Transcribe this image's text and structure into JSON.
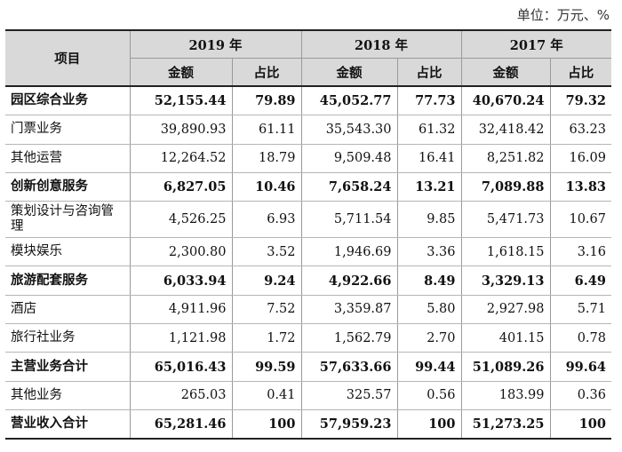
{
  "unit_note": "单位：万元、%",
  "header": {
    "item": "项目",
    "years": [
      "2019 年",
      "2018 年",
      "2017 年"
    ],
    "amount_label": "金额",
    "ratio_label": "占比"
  },
  "rows": [
    {
      "label": "园区综合业务",
      "bold": true,
      "values": [
        "52,155.44",
        "79.89",
        "45,052.77",
        "77.73",
        "40,670.24",
        "79.32"
      ]
    },
    {
      "label": "门票业务",
      "bold": false,
      "values": [
        "39,890.93",
        "61.11",
        "35,543.30",
        "61.32",
        "32,418.42",
        "63.23"
      ]
    },
    {
      "label": "其他运营",
      "bold": false,
      "values": [
        "12,264.52",
        "18.79",
        "9,509.48",
        "16.41",
        "8,251.82",
        "16.09"
      ]
    },
    {
      "label": "创新创意服务",
      "bold": true,
      "values": [
        "6,827.05",
        "10.46",
        "7,658.24",
        "13.21",
        "7,089.88",
        "13.83"
      ]
    },
    {
      "label": "策划设计与咨询管理",
      "bold": false,
      "values": [
        "4,526.25",
        "6.93",
        "5,711.54",
        "9.85",
        "5,471.73",
        "10.67"
      ]
    },
    {
      "label": "模块娱乐",
      "bold": false,
      "values": [
        "2,300.80",
        "3.52",
        "1,946.69",
        "3.36",
        "1,618.15",
        "3.16"
      ]
    },
    {
      "label": "旅游配套服务",
      "bold": true,
      "values": [
        "6,033.94",
        "9.24",
        "4,922.66",
        "8.49",
        "3,329.13",
        "6.49"
      ]
    },
    {
      "label": "酒店",
      "bold": false,
      "values": [
        "4,911.96",
        "7.52",
        "3,359.87",
        "5.80",
        "2,927.98",
        "5.71"
      ]
    },
    {
      "label": "旅行社业务",
      "bold": false,
      "values": [
        "1,121.98",
        "1.72",
        "1,562.79",
        "2.70",
        "401.15",
        "0.78"
      ]
    },
    {
      "label": "主营业务合计",
      "bold": true,
      "values": [
        "65,016.43",
        "99.59",
        "57,633.66",
        "99.44",
        "51,089.26",
        "99.64"
      ]
    },
    {
      "label": "其他业务",
      "bold": false,
      "values": [
        "265.03",
        "0.41",
        "325.57",
        "0.56",
        "183.99",
        "0.36"
      ]
    },
    {
      "label": "营业收入合计",
      "bold": true,
      "values": [
        "65,281.46",
        "100",
        "57,959.23",
        "100",
        "51,273.25",
        "100"
      ]
    }
  ]
}
